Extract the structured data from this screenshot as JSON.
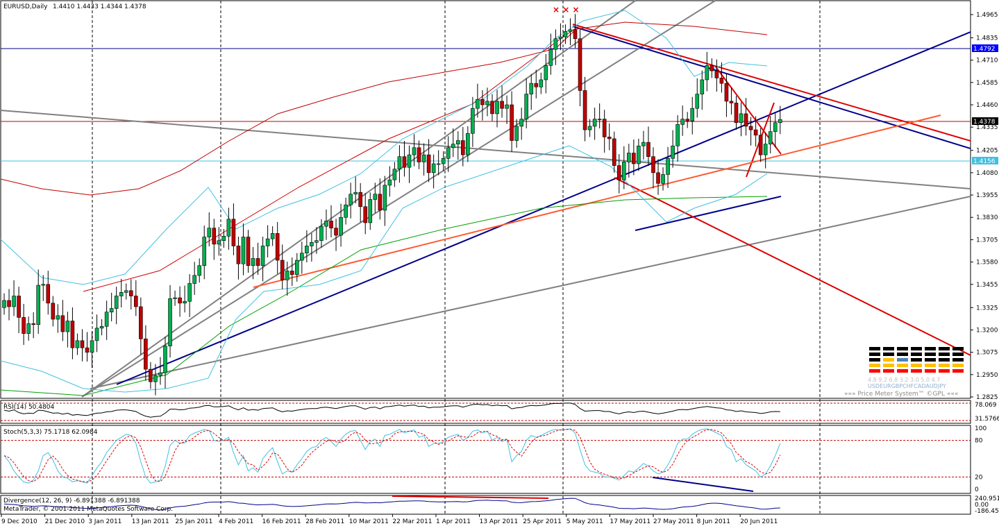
{
  "header": {
    "symbol_title": "EURUSD,Daily",
    "ohlc": "1.4410 1.4433 1.4344 1.4378",
    "corner_marks": "× × ×"
  },
  "price_levels": {
    "current_label": "1.4378",
    "blue_label": "1.4792",
    "cyan_label": "1.4156"
  },
  "colors": {
    "bull": "#00b050",
    "bear": "#c00000",
    "blue_line": "#00008b",
    "red_line": "#dd0000",
    "gray_line": "#808080",
    "orange_line": "#ff5a30",
    "cyan": "#40c0e0",
    "current_price_line": "#c00000"
  },
  "chart_data": [
    {
      "type": "line",
      "name": "EURUSD Daily candles",
      "title": "EURUSD,Daily",
      "y_ticks": [
        "1.4965",
        "1.4835",
        "1.4710",
        "1.4585",
        "1.4460",
        "1.4335",
        "1.4205",
        "1.4080",
        "1.3955",
        "1.3830",
        "1.3705",
        "1.3580",
        "1.3455",
        "1.3325",
        "1.3200",
        "1.3075",
        "1.2950",
        "1.2825"
      ],
      "x_ticks": [
        "9 Dec 2010",
        "21 Dec 2010",
        "3 Jan 2011",
        "13 Jan 2011",
        "25 Jan 2011",
        "4 Feb 2011",
        "16 Feb 2011",
        "28 Feb 2011",
        "10 Mar 2011",
        "22 Mar 2011",
        "1 Apr 2011",
        "13 Apr 2011",
        "25 Apr 2011",
        "5 May 2011",
        "17 May 2011",
        "27 May 2011",
        "8 Jun 2011",
        "20 Jun 2011"
      ],
      "ylim": [
        1.2825,
        1.5039
      ],
      "closes": [
        1.3365,
        1.333,
        1.339,
        1.327,
        1.318,
        1.3235,
        1.323,
        1.345,
        1.3455,
        1.335,
        1.326,
        1.328,
        1.319,
        1.325,
        1.31,
        1.314,
        1.31,
        1.3075,
        1.314,
        1.321,
        1.322,
        1.33,
        1.332,
        1.339,
        1.341,
        1.342,
        1.339,
        1.333,
        1.315,
        1.298,
        1.291,
        1.2945,
        1.296,
        1.311,
        1.3375,
        1.338,
        1.335,
        1.336,
        1.346,
        1.3505,
        1.356,
        1.372,
        1.377,
        1.368,
        1.37,
        1.3725,
        1.382,
        1.367,
        1.357,
        1.372,
        1.356,
        1.36,
        1.356,
        1.367,
        1.371,
        1.374,
        1.359,
        1.348,
        1.353,
        1.351,
        1.359,
        1.363,
        1.367,
        1.369,
        1.37,
        1.378,
        1.381,
        1.377,
        1.373,
        1.383,
        1.39,
        1.396,
        1.397,
        1.389,
        1.38,
        1.393,
        1.396,
        1.387,
        1.401,
        1.404,
        1.41,
        1.417,
        1.411,
        1.418,
        1.422,
        1.414,
        1.418,
        1.408,
        1.413,
        1.413,
        1.416,
        1.422,
        1.424,
        1.426,
        1.418,
        1.43,
        1.444,
        1.449,
        1.446,
        1.448,
        1.441,
        1.448,
        1.444,
        1.446,
        1.426,
        1.434,
        1.438,
        1.452,
        1.458,
        1.456,
        1.46,
        1.468,
        1.477,
        1.483,
        1.484,
        1.487,
        1.488,
        1.483,
        1.454,
        1.432,
        1.434,
        1.438,
        1.438,
        1.428,
        1.427,
        1.412,
        1.404,
        1.414,
        1.419,
        1.413,
        1.423,
        1.425,
        1.417,
        1.408,
        1.402,
        1.407,
        1.416,
        1.423,
        1.435,
        1.438,
        1.437,
        1.444,
        1.452,
        1.46,
        1.468,
        1.465,
        1.461,
        1.458,
        1.448,
        1.447,
        1.436,
        1.441,
        1.434,
        1.432,
        1.429,
        1.418,
        1.424,
        1.431,
        1.436,
        1.4378
      ],
      "annotations": [
        "1.4378",
        "1.4792",
        "1.4156"
      ]
    },
    {
      "type": "line",
      "name": "RSI",
      "label": "RSI(14) 50.4804",
      "y_ticks": [
        "78.069",
        "31.5766"
      ],
      "ylim": [
        20,
        80
      ],
      "values": [
        55,
        52,
        56,
        48,
        44,
        46,
        45,
        55,
        54,
        50,
        46,
        47,
        43,
        46,
        40,
        42,
        40,
        39,
        43,
        46,
        47,
        50,
        51,
        55,
        56,
        56,
        54,
        51,
        43,
        37,
        34,
        36,
        37,
        46,
        58,
        58,
        56,
        57,
        61,
        62,
        64,
        68,
        69,
        65,
        65,
        66,
        68,
        61,
        56,
        62,
        55,
        57,
        55,
        60,
        61,
        62,
        55,
        50,
        53,
        52,
        55,
        57,
        59,
        60,
        60,
        63,
        64,
        62,
        60,
        63,
        66,
        68,
        68,
        63,
        58,
        63,
        64,
        59,
        65,
        66,
        68,
        70,
        67,
        69,
        70,
        66,
        67,
        62,
        64,
        64,
        65,
        67,
        68,
        68,
        64,
        68,
        72,
        73,
        71,
        72,
        68,
        70,
        68,
        69,
        59,
        62,
        63,
        67,
        69,
        68,
        69,
        71,
        74,
        75,
        75,
        76,
        76,
        72,
        60,
        52,
        53,
        54,
        54,
        51,
        51,
        47,
        44,
        48,
        50,
        48,
        51,
        52,
        49,
        46,
        44,
        46,
        49,
        52,
        56,
        57,
        56,
        59,
        62,
        64,
        66,
        64,
        62,
        61,
        56,
        55,
        51,
        53,
        50,
        49,
        48,
        45,
        47,
        50,
        51,
        50.48
      ]
    },
    {
      "type": "line",
      "name": "Stochastic",
      "label": "Stoch(5,3,3) 75.1718 62.0984",
      "y_ticks": [
        "100",
        "80",
        "20",
        "0"
      ],
      "ylim": [
        0,
        100
      ],
      "main": [
        55,
        45,
        30,
        20,
        12,
        10,
        15,
        30,
        55,
        60,
        48,
        30,
        20,
        18,
        12,
        14,
        12,
        10,
        22,
        35,
        45,
        60,
        70,
        80,
        85,
        90,
        88,
        75,
        45,
        20,
        10,
        12,
        15,
        38,
        72,
        80,
        75,
        76,
        88,
        92,
        95,
        98,
        96,
        80,
        78,
        80,
        85,
        60,
        40,
        55,
        30,
        35,
        28,
        50,
        60,
        68,
        45,
        25,
        30,
        28,
        40,
        50,
        62,
        68,
        70,
        80,
        85,
        78,
        70,
        82,
        90,
        95,
        96,
        80,
        65,
        78,
        82,
        70,
        88,
        90,
        94,
        98,
        92,
        95,
        97,
        85,
        88,
        70,
        75,
        75,
        78,
        85,
        88,
        90,
        80,
        85,
        95,
        97,
        92,
        95,
        80,
        85,
        78,
        82,
        45,
        55,
        62,
        80,
        88,
        85,
        88,
        92,
        96,
        98,
        97,
        98,
        99,
        92,
        65,
        40,
        30,
        28,
        26,
        20,
        20,
        18,
        15,
        22,
        30,
        28,
        35,
        42,
        38,
        30,
        25,
        28,
        40,
        55,
        75,
        82,
        82,
        90,
        95,
        98,
        99,
        96,
        92,
        88,
        70,
        65,
        45,
        50,
        40,
        35,
        30,
        20,
        25,
        38,
        55,
        75.17
      ]
    },
    {
      "type": "line",
      "name": "Divergence MACD",
      "label": "Divergence(12, 26, 9) -6.891388 -6.891388",
      "y_ticks": [
        "240.951",
        "0.00",
        "-186.451"
      ],
      "ylim": [
        -186.451,
        240.951
      ],
      "values": [
        60,
        55,
        52,
        40,
        30,
        25,
        20,
        25,
        30,
        25,
        18,
        15,
        10,
        8,
        0,
        -5,
        -10,
        -15,
        -12,
        -5,
        0,
        8,
        15,
        25,
        32,
        38,
        40,
        35,
        20,
        0,
        -20,
        -35,
        -40,
        -30,
        -5,
        10,
        18,
        22,
        35,
        48,
        60,
        78,
        90,
        92,
        92,
        94,
        100,
        90,
        75,
        72,
        60,
        52,
        45,
        48,
        50,
        54,
        45,
        30,
        22,
        18,
        20,
        24,
        30,
        38,
        42,
        52,
        60,
        62,
        60,
        66,
        74,
        82,
        88,
        85,
        78,
        80,
        84,
        80,
        88,
        94,
        100,
        108,
        108,
        110,
        114,
        112,
        110,
        102,
        98,
        96,
        96,
        98,
        100,
        102,
        96,
        98,
        110,
        120,
        122,
        124,
        118,
        118,
        114,
        114,
        90,
        84,
        82,
        92,
        100,
        102,
        106,
        112,
        122,
        134,
        142,
        150,
        156,
        154,
        120,
        82,
        60,
        50,
        44,
        30,
        20,
        5,
        -12,
        -15,
        -15,
        -20,
        -14,
        -8,
        -12,
        -20,
        -28,
        -30,
        -28,
        -20,
        -5,
        8,
        14,
        20,
        32,
        48,
        66,
        74,
        74,
        68,
        55,
        44,
        30,
        22,
        10,
        0,
        -10,
        -25,
        -28,
        -20,
        -10,
        -6.89
      ]
    }
  ],
  "price_meter": {
    "rows": [
      "▬▬▬▬▬▬▬▬▬▬",
      "▬▬▬▬▬▬▬▬▬▬",
      "▬▬▬▬▬▬▬▬▬▬",
      "▬▬▬▬▬▬▬▬▬▬",
      "▬▬▬▬▬▬▬▬▬▬"
    ],
    "numbers": "4.8 9.2 6.8 3.2 3.0 5.0 4.7",
    "currencies": "USDEURGBPCHFCADAUDJPY",
    "label": "»»» Price Meter System™ ©GPL «««"
  },
  "footer": {
    "copyright": "MetaTrader, © 2001-2011 MetaQuotes Software Corp."
  }
}
